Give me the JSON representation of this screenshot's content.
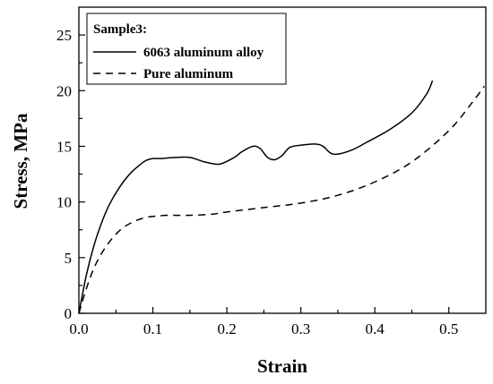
{
  "chart_data": {
    "type": "line",
    "title": "",
    "xlabel": "Strain",
    "ylabel": "Stress, MPa",
    "xlim": [
      0.0,
      0.55
    ],
    "ylim": [
      0,
      27.5
    ],
    "xticks": [
      0.0,
      0.1,
      0.2,
      0.3,
      0.4,
      0.5
    ],
    "xtick_labels": [
      "0.0",
      "0.1",
      "0.2",
      "0.3",
      "0.4",
      "0.5"
    ],
    "yticks": [
      0,
      5,
      10,
      15,
      20,
      25
    ],
    "ytick_labels": [
      "0",
      "5",
      "10",
      "15",
      "20",
      "25"
    ],
    "grid": false,
    "legend": {
      "title": "Sample3:",
      "placement": "top-left",
      "entries": [
        "6063 aluminum alloy",
        "Pure aluminum"
      ]
    },
    "series": [
      {
        "name": "6063 aluminum alloy",
        "style": "solid",
        "color": "#000000",
        "x": [
          0.0,
          0.01,
          0.02,
          0.03,
          0.04,
          0.05,
          0.06,
          0.07,
          0.08,
          0.09,
          0.1,
          0.11,
          0.13,
          0.15,
          0.17,
          0.19,
          0.21,
          0.22,
          0.235,
          0.245,
          0.255,
          0.265,
          0.275,
          0.285,
          0.3,
          0.32,
          0.33,
          0.34,
          0.35,
          0.37,
          0.39,
          0.42,
          0.45,
          0.47,
          0.478
        ],
        "y": [
          0.0,
          3.4,
          6.0,
          8.0,
          9.6,
          10.8,
          11.8,
          12.6,
          13.2,
          13.7,
          13.9,
          13.9,
          14.0,
          14.0,
          13.6,
          13.4,
          14.0,
          14.5,
          15.0,
          14.8,
          14.0,
          13.8,
          14.2,
          14.9,
          15.1,
          15.2,
          15.0,
          14.4,
          14.3,
          14.7,
          15.4,
          16.5,
          18.0,
          19.7,
          20.9
        ]
      },
      {
        "name": "Pure aluminum",
        "style": "dashed",
        "color": "#000000",
        "x": [
          0.0,
          0.01,
          0.02,
          0.03,
          0.04,
          0.05,
          0.06,
          0.07,
          0.08,
          0.09,
          0.1,
          0.12,
          0.15,
          0.18,
          0.2,
          0.25,
          0.3,
          0.35,
          0.4,
          0.45,
          0.5,
          0.53,
          0.548
        ],
        "y": [
          0.0,
          2.2,
          4.0,
          5.3,
          6.3,
          7.1,
          7.7,
          8.1,
          8.4,
          8.6,
          8.7,
          8.8,
          8.8,
          8.9,
          9.1,
          9.5,
          9.9,
          10.6,
          11.8,
          13.6,
          16.4,
          18.8,
          20.4
        ]
      }
    ]
  }
}
